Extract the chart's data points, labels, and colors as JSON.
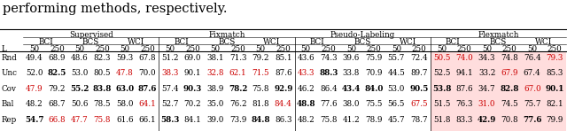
{
  "title_text": "performing methods, respectively.",
  "rows": [
    {
      "label": "L",
      "vals": [
        "50",
        "250",
        "50",
        "250",
        "50",
        "250",
        "50",
        "250",
        "50",
        "250",
        "50",
        "250",
        "50",
        "250",
        "50",
        "250",
        "50",
        "250",
        "50",
        "250",
        "50",
        "250",
        "50",
        "250"
      ],
      "bold": [
        false,
        false,
        false,
        false,
        false,
        false,
        false,
        false,
        false,
        false,
        false,
        false,
        false,
        false,
        false,
        false,
        false,
        false,
        false,
        false,
        false,
        false,
        false,
        false
      ],
      "red": [
        false,
        false,
        false,
        false,
        false,
        false,
        false,
        false,
        false,
        false,
        false,
        false,
        false,
        false,
        false,
        false,
        false,
        false,
        false,
        false,
        false,
        false,
        false,
        false
      ]
    },
    {
      "label": "Rnd",
      "vals": [
        "49.4",
        "68.9",
        "48.6",
        "82.3",
        "59.3",
        "67.8",
        "51.2",
        "69.0",
        "38.1",
        "71.3",
        "79.2",
        "85.1",
        "43.6",
        "74.3",
        "39.6",
        "75.9",
        "55.7",
        "72.4",
        "50.5",
        "74.0",
        "34.3",
        "74.8",
        "76.4",
        "79.3"
      ],
      "bold": [
        false,
        false,
        false,
        false,
        false,
        false,
        false,
        false,
        false,
        false,
        false,
        false,
        false,
        false,
        false,
        false,
        false,
        false,
        false,
        false,
        false,
        false,
        false,
        false
      ],
      "red": [
        false,
        false,
        false,
        false,
        false,
        false,
        false,
        false,
        false,
        false,
        false,
        false,
        false,
        false,
        false,
        false,
        false,
        false,
        true,
        true,
        false,
        false,
        false,
        true
      ]
    },
    {
      "label": "Unc",
      "vals": [
        "52.0",
        "82.5",
        "53.0",
        "80.5",
        "47.8",
        "70.0",
        "38.3",
        "90.1",
        "32.8",
        "62.1",
        "71.5",
        "87.6",
        "43.3",
        "88.3",
        "33.8",
        "70.9",
        "44.5",
        "89.7",
        "52.5",
        "94.1",
        "33.2",
        "67.9",
        "67.4",
        "85.3"
      ],
      "bold": [
        false,
        true,
        false,
        false,
        false,
        false,
        false,
        false,
        false,
        false,
        false,
        false,
        false,
        true,
        false,
        false,
        false,
        false,
        false,
        false,
        false,
        false,
        false,
        false
      ],
      "red": [
        false,
        false,
        false,
        false,
        true,
        false,
        true,
        false,
        true,
        true,
        true,
        false,
        true,
        false,
        false,
        false,
        false,
        false,
        false,
        false,
        false,
        true,
        false,
        false
      ]
    },
    {
      "label": "Cov",
      "vals": [
        "47.9",
        "79.2",
        "55.2",
        "83.8",
        "63.0",
        "87.6",
        "57.4",
        "90.3",
        "38.9",
        "78.2",
        "75.8",
        "92.9",
        "46.2",
        "86.4",
        "43.4",
        "84.0",
        "53.0",
        "90.5",
        "53.8",
        "87.6",
        "34.7",
        "82.8",
        "67.0",
        "90.1"
      ],
      "bold": [
        false,
        false,
        true,
        true,
        true,
        true,
        false,
        true,
        false,
        true,
        false,
        true,
        false,
        false,
        true,
        true,
        false,
        true,
        true,
        false,
        false,
        true,
        false,
        true
      ],
      "red": [
        true,
        false,
        false,
        false,
        false,
        false,
        false,
        false,
        false,
        false,
        false,
        false,
        false,
        false,
        false,
        false,
        false,
        false,
        false,
        false,
        false,
        false,
        true,
        false
      ]
    },
    {
      "label": "Bal",
      "vals": [
        "48.2",
        "68.7",
        "50.6",
        "78.5",
        "58.0",
        "64.1",
        "52.7",
        "70.2",
        "35.0",
        "76.2",
        "81.8",
        "84.4",
        "48.8",
        "77.6",
        "38.0",
        "75.5",
        "56.5",
        "67.5",
        "51.5",
        "76.3",
        "31.0",
        "74.5",
        "75.7",
        "82.1"
      ],
      "bold": [
        false,
        false,
        false,
        false,
        false,
        false,
        false,
        false,
        false,
        false,
        false,
        false,
        true,
        false,
        false,
        false,
        false,
        false,
        false,
        false,
        false,
        false,
        false,
        false
      ],
      "red": [
        false,
        false,
        false,
        false,
        false,
        true,
        false,
        false,
        false,
        false,
        false,
        true,
        false,
        false,
        false,
        false,
        false,
        true,
        false,
        false,
        true,
        false,
        false,
        false
      ]
    },
    {
      "label": "Rep",
      "vals": [
        "54.7",
        "66.8",
        "47.7",
        "75.8",
        "61.6",
        "66.1",
        "58.3",
        "84.1",
        "39.0",
        "73.9",
        "84.8",
        "86.3",
        "48.2",
        "75.8",
        "41.2",
        "78.9",
        "45.7",
        "78.7",
        "51.8",
        "83.3",
        "42.9",
        "70.8",
        "77.6",
        "79.9"
      ],
      "bold": [
        true,
        false,
        false,
        false,
        false,
        false,
        true,
        false,
        false,
        false,
        true,
        false,
        false,
        false,
        false,
        false,
        false,
        false,
        false,
        false,
        true,
        false,
        true,
        false
      ],
      "red": [
        false,
        true,
        true,
        true,
        false,
        false,
        false,
        false,
        false,
        false,
        false,
        false,
        false,
        false,
        false,
        false,
        false,
        false,
        false,
        false,
        false,
        false,
        false,
        false
      ]
    }
  ],
  "normal_color": "#000000",
  "red_color": "#cc0000",
  "bg_color": "#ffffff",
  "highlight_bg": "#ffdddd"
}
